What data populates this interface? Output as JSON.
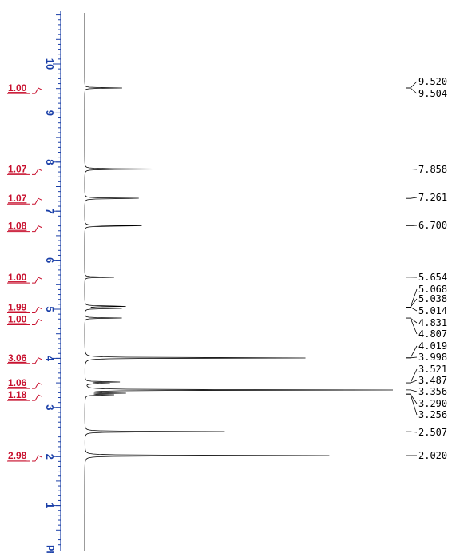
{
  "chart_data": {
    "type": "line",
    "xlabel": "ppm",
    "xlim": [
      11.0,
      0.2
    ],
    "axis_ticks": [
      {
        "value": 10,
        "label": "10"
      },
      {
        "value": 9,
        "label": "9"
      },
      {
        "value": 8,
        "label": "8"
      },
      {
        "value": 7,
        "label": "7"
      },
      {
        "value": 6,
        "label": "6"
      },
      {
        "value": 5,
        "label": "5"
      },
      {
        "value": 4,
        "label": "4"
      },
      {
        "value": 3,
        "label": "3"
      },
      {
        "value": 2,
        "label": "2"
      },
      {
        "value": 1,
        "label": "1"
      }
    ],
    "peaks": [
      {
        "ppm": 9.512,
        "height": 0.12
      },
      {
        "ppm": 7.858,
        "height": 0.26
      },
      {
        "ppm": 7.261,
        "height": 0.21
      },
      {
        "ppm": 6.7,
        "height": 0.2
      },
      {
        "ppm": 5.654,
        "height": 0.11
      },
      {
        "ppm": 5.06,
        "height": 0.16
      },
      {
        "ppm": 5.015,
        "height": 0.12
      },
      {
        "ppm": 4.82,
        "height": 0.12
      },
      {
        "ppm": 4.009,
        "height": 0.82
      },
      {
        "ppm": 3.52,
        "height": 0.12
      },
      {
        "ppm": 3.487,
        "height": 0.08
      },
      {
        "ppm": 3.356,
        "height": 1.0
      },
      {
        "ppm": 3.29,
        "height": 0.12
      },
      {
        "ppm": 3.256,
        "height": 0.09
      },
      {
        "ppm": 2.507,
        "height": 0.46
      },
      {
        "ppm": 2.02,
        "height": 0.78
      }
    ],
    "integrals": [
      {
        "ppm": 9.51,
        "label": "1.00"
      },
      {
        "ppm": 7.86,
        "label": "1.07"
      },
      {
        "ppm": 7.26,
        "label": "1.07"
      },
      {
        "ppm": 6.7,
        "label": "1.08"
      },
      {
        "ppm": 5.65,
        "label": "1.00"
      },
      {
        "ppm": 5.04,
        "label": "1.99"
      },
      {
        "ppm": 4.82,
        "label": "1.00"
      },
      {
        "ppm": 4.01,
        "label": "3.06"
      },
      {
        "ppm": 3.5,
        "label": "1.06"
      },
      {
        "ppm": 3.3,
        "label": "1.18"
      },
      {
        "ppm": 2.02,
        "label": "2.98"
      }
    ],
    "peak_labels": [
      {
        "text": "9.520",
        "group": 0
      },
      {
        "text": "9.504",
        "group": 0
      },
      {
        "text": "7.858",
        "group": 1
      },
      {
        "text": "7.261",
        "group": 2
      },
      {
        "text": "6.700",
        "group": 3
      },
      {
        "text": "5.654",
        "group": 4
      },
      {
        "text": "5.068",
        "group": 5
      },
      {
        "text": "5.038",
        "group": 5
      },
      {
        "text": "5.014",
        "group": 5
      },
      {
        "text": "4.831",
        "group": 6
      },
      {
        "text": "4.807",
        "group": 6
      },
      {
        "text": "4.019",
        "group": 7
      },
      {
        "text": "3.998",
        "group": 7
      },
      {
        "text": "3.521",
        "group": 8
      },
      {
        "text": "3.487",
        "group": 8
      },
      {
        "text": "3.356",
        "group": 9
      },
      {
        "text": "3.290",
        "group": 10
      },
      {
        "text": "3.256",
        "group": 10
      },
      {
        "text": "2.507",
        "group": 11
      },
      {
        "text": "2.020",
        "group": 12
      }
    ]
  }
}
